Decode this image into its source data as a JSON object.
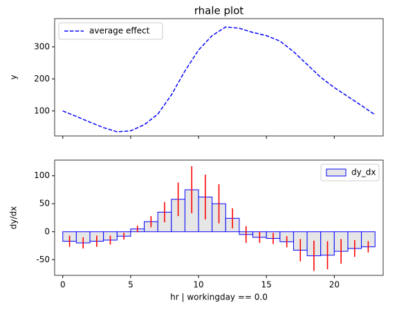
{
  "chart_data": [
    {
      "type": "line",
      "title": "rhale plot",
      "ylabel": "y",
      "x": [
        0,
        1,
        2,
        3,
        4,
        5,
        6,
        7,
        8,
        9,
        10,
        11,
        12,
        13,
        14,
        15,
        16,
        17,
        18,
        19,
        20,
        21,
        22,
        23
      ],
      "series": [
        {
          "name": "average effect",
          "color": "blue",
          "dashed": true,
          "values": [
            100,
            83,
            65,
            48,
            35,
            38,
            57,
            90,
            150,
            225,
            290,
            335,
            362,
            358,
            345,
            335,
            318,
            285,
            245,
            205,
            173,
            145,
            117,
            88
          ]
        }
      ],
      "xlim": [
        -0.6,
        23.6
      ],
      "xticks": [
        0,
        5,
        10,
        15,
        20
      ],
      "show_xticklabels": false,
      "ylim": [
        22,
        388
      ],
      "yticks": [
        100,
        200,
        300
      ],
      "legend": "upper left"
    },
    {
      "type": "histogram",
      "xlabel": "hr | workingday == 0.0",
      "ylabel": "dy/dx",
      "bins": [
        0,
        1,
        2,
        3,
        4,
        5,
        6,
        7,
        8,
        9,
        10,
        11,
        12,
        13,
        14,
        15,
        16,
        17,
        18,
        19,
        20,
        21,
        22,
        23
      ],
      "series": [
        {
          "name": "dy_dx",
          "color": "#e6e6e6",
          "edgecolor": "blue",
          "errorcolor": "red",
          "values": [
            -17,
            -20,
            -17,
            -15,
            -8,
            5,
            18,
            35,
            58,
            75,
            62,
            50,
            24,
            -5,
            -10,
            -12,
            -18,
            -33,
            -43,
            -42,
            -35,
            -30,
            -27
          ],
          "errors": [
            10,
            10,
            10,
            8,
            6,
            6,
            10,
            18,
            30,
            42,
            40,
            35,
            18,
            15,
            10,
            10,
            10,
            20,
            27,
            25,
            22,
            15,
            10
          ]
        }
      ],
      "xlim": [
        -0.6,
        23.6
      ],
      "xticks": [
        0,
        5,
        10,
        15,
        20
      ],
      "show_xticklabels": true,
      "ylim": [
        -78,
        128
      ],
      "yticks": [
        -50,
        0,
        50,
        100
      ],
      "legend": "upper right"
    }
  ]
}
